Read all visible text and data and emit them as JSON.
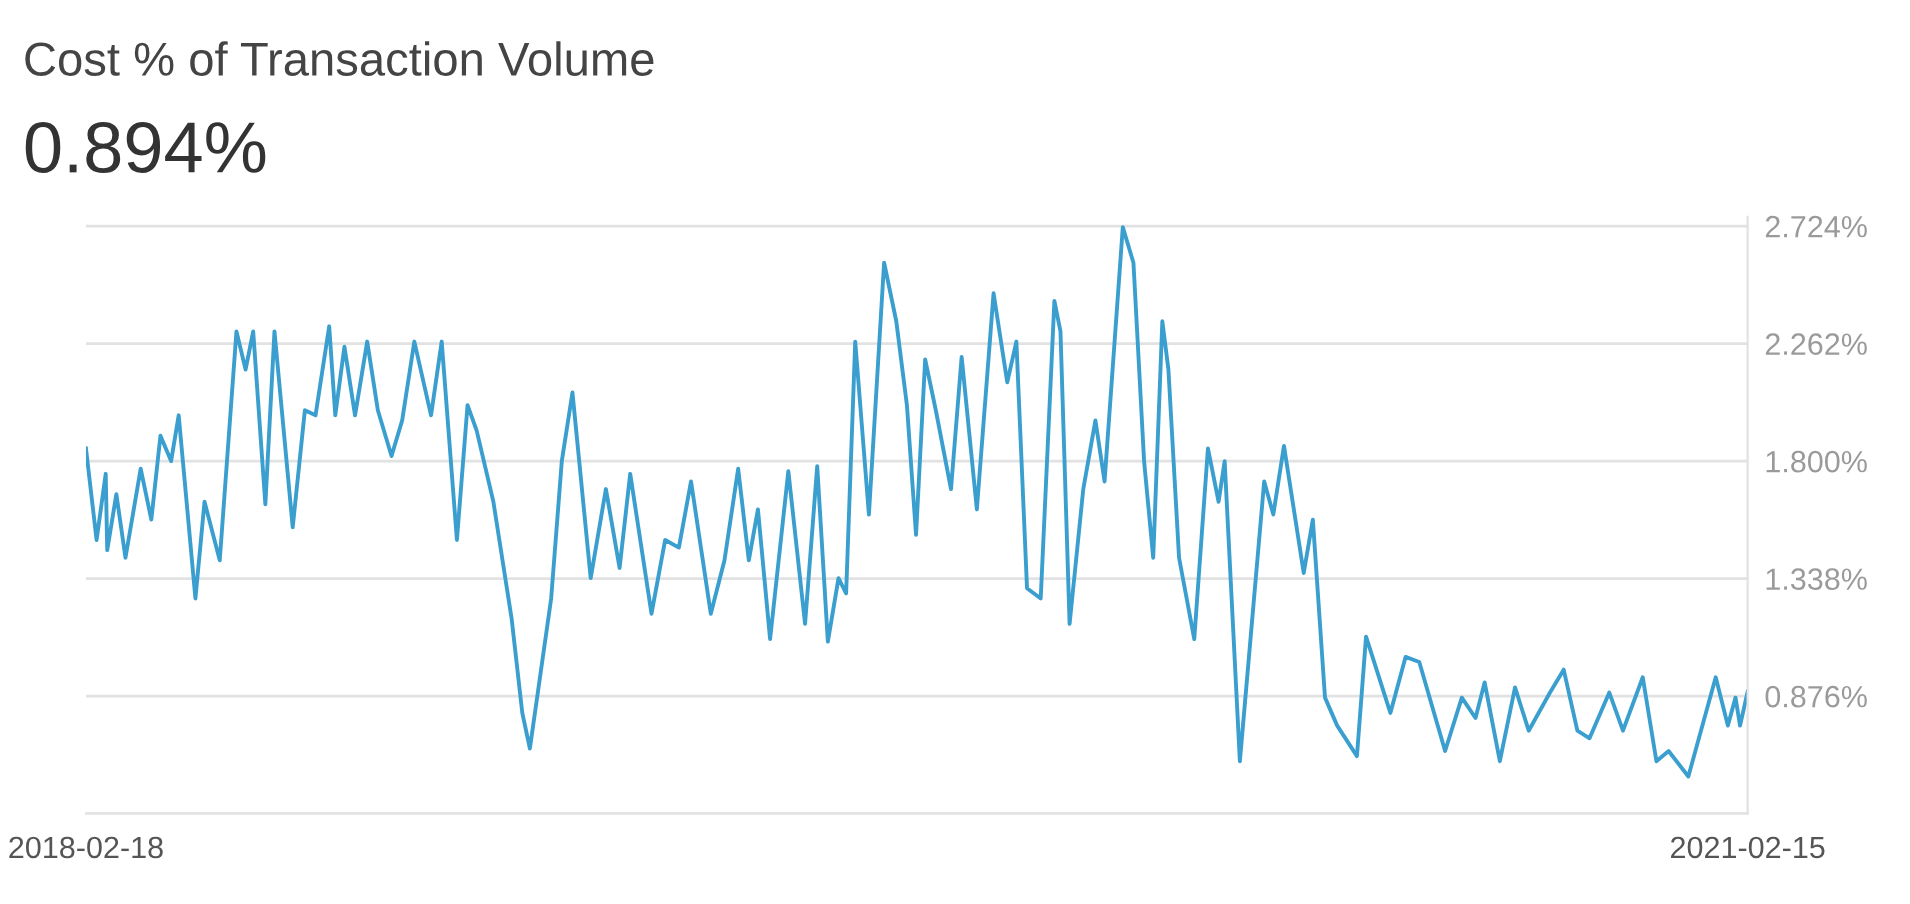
{
  "chart_data": {
    "type": "line",
    "title": "Cost % of Transaction Volume",
    "subtitle": "0.894%",
    "x": [
      "2018-02-18",
      "2018-02-25",
      "2018-03-03",
      "2018-03-04",
      "2018-03-10",
      "2018-03-16",
      "2018-03-26",
      "2018-04-02",
      "2018-04-08",
      "2018-04-15",
      "2018-04-20",
      "2018-05-01",
      "2018-05-07",
      "2018-05-17",
      "2018-05-28",
      "2018-06-03",
      "2018-06-08",
      "2018-06-16",
      "2018-06-22",
      "2018-07-04",
      "2018-07-12",
      "2018-07-19",
      "2018-07-28",
      "2018-08-01",
      "2018-08-07",
      "2018-08-14",
      "2018-08-22",
      "2018-08-29",
      "2018-09-07",
      "2018-09-14",
      "2018-09-22",
      "2018-10-03",
      "2018-10-10",
      "2018-10-20",
      "2018-10-27",
      "2018-11-02",
      "2018-11-13",
      "2018-11-25",
      "2018-12-02",
      "2018-12-07",
      "2018-12-21",
      "2018-12-28",
      "2019-01-04",
      "2019-01-16",
      "2019-01-26",
      "2019-02-04",
      "2019-02-11",
      "2019-02-25",
      "2019-03-06",
      "2019-03-15",
      "2019-03-23",
      "2019-04-05",
      "2019-04-14",
      "2019-04-23",
      "2019-04-30",
      "2019-05-06",
      "2019-05-14",
      "2019-05-26",
      "2019-06-06",
      "2019-06-14",
      "2019-06-21",
      "2019-06-28",
      "2019-07-03",
      "2019-07-09",
      "2019-07-18",
      "2019-07-28",
      "2019-08-05",
      "2019-08-12",
      "2019-08-18",
      "2019-08-24",
      "2019-08-31",
      "2019-09-10",
      "2019-09-17",
      "2019-09-27",
      "2019-10-08",
      "2019-10-17",
      "2019-10-23",
      "2019-10-30",
      "2019-11-08",
      "2019-11-17",
      "2019-11-21",
      "2019-11-27",
      "2019-12-06",
      "2019-12-14",
      "2019-12-20",
      "2020-01-01",
      "2020-01-08",
      "2020-01-15",
      "2020-01-21",
      "2020-01-27",
      "2020-01-31",
      "2020-02-07",
      "2020-02-17",
      "2020-02-26",
      "2020-03-04",
      "2020-03-08",
      "2020-03-18",
      "2020-04-03",
      "2020-04-09",
      "2020-04-16",
      "2020-04-29",
      "2020-05-05",
      "2020-05-13",
      "2020-05-21",
      "2020-06-03",
      "2020-06-09",
      "2020-06-25",
      "2020-07-05",
      "2020-07-14",
      "2020-07-31",
      "2020-08-11",
      "2020-08-20",
      "2020-08-26",
      "2020-09-05",
      "2020-09-15",
      "2020-09-24",
      "2020-10-08",
      "2020-10-17",
      "2020-10-26",
      "2020-11-03",
      "2020-11-16",
      "2020-11-25",
      "2020-12-08",
      "2020-12-17",
      "2020-12-25",
      "2021-01-07",
      "2021-01-25",
      "2021-02-02",
      "2021-02-07",
      "2021-02-10",
      "2021-02-15"
    ],
    "series": [
      {
        "color": "#3a9fcf",
        "values": [
          1.85,
          1.49,
          1.75,
          1.45,
          1.67,
          1.42,
          1.77,
          1.57,
          1.9,
          1.8,
          1.98,
          1.26,
          1.64,
          1.41,
          2.31,
          2.16,
          2.31,
          1.63,
          2.31,
          1.54,
          2.0,
          1.98,
          2.33,
          1.98,
          2.25,
          1.98,
          2.27,
          2.0,
          1.82,
          1.96,
          2.27,
          1.98,
          2.27,
          1.49,
          2.02,
          1.92,
          1.64,
          1.18,
          0.81,
          0.67,
          1.26,
          1.8,
          2.07,
          1.34,
          1.69,
          1.38,
          1.75,
          1.2,
          1.49,
          1.46,
          1.72,
          1.2,
          1.41,
          1.77,
          1.41,
          1.61,
          1.1,
          1.76,
          1.16,
          1.78,
          1.09,
          1.34,
          1.28,
          2.27,
          1.59,
          2.58,
          2.35,
          2.02,
          1.51,
          2.2,
          2.0,
          1.69,
          2.21,
          1.61,
          2.46,
          2.11,
          2.27,
          1.3,
          1.26,
          2.43,
          2.31,
          1.16,
          1.69,
          1.96,
          1.72,
          2.72,
          2.58,
          1.8,
          1.42,
          2.35,
          2.16,
          1.42,
          1.1,
          1.85,
          1.64,
          1.8,
          0.62,
          1.72,
          1.59,
          1.86,
          1.36,
          1.57,
          0.87,
          0.76,
          0.64,
          1.11,
          0.81,
          1.03,
          1.01,
          0.66,
          0.87,
          0.79,
          0.93,
          0.62,
          0.91,
          0.74,
          0.89,
          0.98,
          0.74,
          0.71,
          0.89,
          0.74,
          0.95,
          0.62,
          0.66,
          0.56,
          0.95,
          0.76,
          0.87,
          0.76,
          0.894
        ]
      }
    ],
    "xlim": [
      "2018-02-18",
      "2021-02-15"
    ],
    "xticks": [
      {
        "value": "2018-02-18",
        "label": "2018-02-18"
      },
      {
        "value": "2021-02-15",
        "label": "2021-02-15"
      }
    ],
    "ylim": [
      0.414,
      2.76
    ],
    "yticks": [
      {
        "value": 0.414,
        "label": null
      },
      {
        "value": 0.876,
        "label": "0.876%"
      },
      {
        "value": 1.338,
        "label": "1.338%"
      },
      {
        "value": 1.8,
        "label": "1.800%"
      },
      {
        "value": 2.262,
        "label": "2.262%"
      },
      {
        "value": 2.724,
        "label": "2.724%"
      }
    ],
    "grid": "y",
    "marker": "none",
    "line_style": "solid"
  }
}
